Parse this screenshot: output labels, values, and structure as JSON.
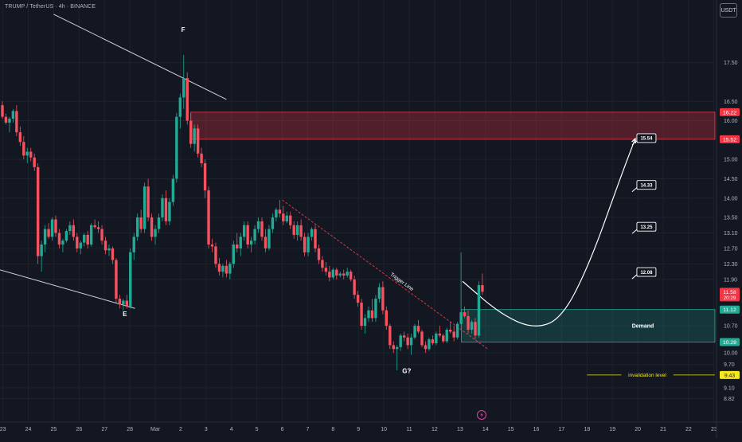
{
  "header": {
    "symbol_title": "TRUMP / TetherUS · 4h · BINANCE",
    "currency": "USDT"
  },
  "chart_data": {
    "type": "candlestick",
    "y_axis_ticks": [
      17.5,
      16.5,
      16.0,
      15.0,
      14.5,
      14.0,
      13.5,
      13.1,
      12.7,
      12.3,
      11.9,
      10.7,
      10.0,
      9.7,
      9.1,
      8.82
    ],
    "x_axis_ticks": [
      {
        "label": "23",
        "day": 23
      },
      {
        "label": "24",
        "day": 24
      },
      {
        "label": "25",
        "day": 25
      },
      {
        "label": "26",
        "day": 26
      },
      {
        "label": "27",
        "day": 27
      },
      {
        "label": "28",
        "day": 28
      },
      {
        "label": "Mar",
        "day": 29
      },
      {
        "label": "2",
        "day": 30
      },
      {
        "label": "3",
        "day": 31
      },
      {
        "label": "4",
        "day": 32
      },
      {
        "label": "5",
        "day": 33
      },
      {
        "label": "6",
        "day": 34
      },
      {
        "label": "7",
        "day": 35
      },
      {
        "label": "8",
        "day": 36
      },
      {
        "label": "9",
        "day": 37
      },
      {
        "label": "10",
        "day": 38
      },
      {
        "label": "11",
        "day": 39
      },
      {
        "label": "12",
        "day": 40
      },
      {
        "label": "13",
        "day": 41
      },
      {
        "label": "14",
        "day": 42
      },
      {
        "label": "15",
        "day": 43
      },
      {
        "label": "16",
        "day": 44
      },
      {
        "label": "17",
        "day": 45
      },
      {
        "label": "18",
        "day": 46
      },
      {
        "label": "19",
        "day": 47
      },
      {
        "label": "20",
        "day": 48
      },
      {
        "label": "21",
        "day": 49
      },
      {
        "label": "22",
        "day": 50
      },
      {
        "label": "23",
        "day": 51
      }
    ],
    "axis_badges": [
      {
        "price": 16.22,
        "label": "16.22",
        "color": "#f23645",
        "text_color": "#ffffff"
      },
      {
        "price": 15.52,
        "label": "15.52",
        "color": "#f23645",
        "text_color": "#ffffff"
      },
      {
        "price": 11.58,
        "label": "11.58",
        "sub": "20:29",
        "color": "#f23645",
        "text_color": "#ffffff"
      },
      {
        "price": 11.12,
        "label": "11.12",
        "color": "#22ab94",
        "text_color": "#ffffff"
      },
      {
        "price": 10.28,
        "label": "10.28",
        "color": "#22ab94",
        "text_color": "#ffffff"
      },
      {
        "price": 9.43,
        "label": "9.43",
        "color": "#f5e71c",
        "text_color": "#131722"
      }
    ],
    "zones": [
      {
        "name": "supply",
        "from_day": 30.4,
        "to_day": 53,
        "top": 16.22,
        "bottom": 15.52,
        "fill": "rgba(242,54,69,0.28)",
        "border": "#f23645"
      },
      {
        "name": "demand",
        "label": "Demand",
        "from_day": 41.05,
        "to_day": 53,
        "top": 11.12,
        "bottom": 10.28,
        "fill": "rgba(34,171,148,0.22)",
        "border": "#22ab94"
      }
    ],
    "invalidation": {
      "label": "invalidation level",
      "price": 9.43,
      "from_day": 46.0,
      "to_day": 53,
      "color": "#f5e71c"
    },
    "targets": [
      {
        "label": "15.54",
        "day": 47.9,
        "price": 15.54
      },
      {
        "label": "14.33",
        "day": 47.9,
        "price": 14.33
      },
      {
        "label": "13.25",
        "day": 47.9,
        "price": 13.25
      },
      {
        "label": "12.08",
        "day": 47.9,
        "price": 12.08
      }
    ],
    "trigger_line": {
      "label": "Trigger Line",
      "from": [
        34.0,
        13.95
      ],
      "to": [
        42.1,
        10.1
      ],
      "color": "#f23645"
    },
    "channel_lines": [
      {
        "from": [
          25.0,
          18.75
        ],
        "to": [
          31.8,
          16.55
        ]
      },
      {
        "from": [
          22.6,
          12.2
        ],
        "to": [
          28.2,
          11.15
        ]
      }
    ],
    "wave_labels": [
      {
        "label": "F",
        "day": 30.1,
        "price": 18.3
      },
      {
        "label": "E",
        "day": 27.8,
        "price": 10.95
      },
      {
        "label": "G?",
        "day": 38.9,
        "price": 9.48
      }
    ],
    "projection_path": [
      [
        41.1,
        11.85
      ],
      [
        42.6,
        11.0
      ],
      [
        43.9,
        10.62
      ],
      [
        45.0,
        10.88
      ],
      [
        46.1,
        12.3
      ],
      [
        47.3,
        14.5
      ],
      [
        47.9,
        15.54
      ]
    ],
    "marker_day": 41.85,
    "candles": [
      [
        22.98,
        16.4,
        16.5,
        16.05,
        16.1
      ],
      [
        23.12,
        16.1,
        16.18,
        15.9,
        15.95
      ],
      [
        23.26,
        15.95,
        16.1,
        15.7,
        16.05
      ],
      [
        23.4,
        16.05,
        16.3,
        15.95,
        16.25
      ],
      [
        23.54,
        16.25,
        16.4,
        15.6,
        15.7
      ],
      [
        23.68,
        15.7,
        15.85,
        15.35,
        15.45
      ],
      [
        23.82,
        15.45,
        15.6,
        15.0,
        15.1
      ],
      [
        23.96,
        15.1,
        15.3,
        14.9,
        15.2
      ],
      [
        24.1,
        15.2,
        15.3,
        14.95,
        15.05
      ],
      [
        24.24,
        15.05,
        15.15,
        14.7,
        14.8
      ],
      [
        24.38,
        14.8,
        14.9,
        12.3,
        12.5
      ],
      [
        24.52,
        12.5,
        12.9,
        12.1,
        12.8
      ],
      [
        24.66,
        12.8,
        13.3,
        12.6,
        13.2
      ],
      [
        24.8,
        13.2,
        13.35,
        12.95,
        13.0
      ],
      [
        24.94,
        13.0,
        13.5,
        12.9,
        13.45
      ],
      [
        25.08,
        13.45,
        13.55,
        13.0,
        13.1
      ],
      [
        25.22,
        13.1,
        13.2,
        12.7,
        12.8
      ],
      [
        25.36,
        12.8,
        12.95,
        12.6,
        12.9
      ],
      [
        25.5,
        12.9,
        13.2,
        12.85,
        13.15
      ],
      [
        25.64,
        13.15,
        13.4,
        13.05,
        13.3
      ],
      [
        25.78,
        13.3,
        13.45,
        12.9,
        13.0
      ],
      [
        25.92,
        13.0,
        13.1,
        12.6,
        12.7
      ],
      [
        26.06,
        12.7,
        12.9,
        12.55,
        12.85
      ],
      [
        26.2,
        12.85,
        13.1,
        12.75,
        13.05
      ],
      [
        26.34,
        13.05,
        13.15,
        12.7,
        12.8
      ],
      [
        26.48,
        12.8,
        13.35,
        12.75,
        13.3
      ],
      [
        26.62,
        13.3,
        13.45,
        13.2,
        13.25
      ],
      [
        26.76,
        13.25,
        13.4,
        13.1,
        13.2
      ],
      [
        26.9,
        13.2,
        13.3,
        12.8,
        12.9
      ],
      [
        27.04,
        12.9,
        13.0,
        12.55,
        12.65
      ],
      [
        27.18,
        12.65,
        12.8,
        12.5,
        12.7
      ],
      [
        27.32,
        12.7,
        12.75,
        12.3,
        12.4
      ],
      [
        27.46,
        12.4,
        12.45,
        11.3,
        11.4
      ],
      [
        27.6,
        11.4,
        11.5,
        11.15,
        11.25
      ],
      [
        27.74,
        11.25,
        11.4,
        11.1,
        11.35
      ],
      [
        27.88,
        11.35,
        11.5,
        11.15,
        11.2
      ],
      [
        28.02,
        11.2,
        12.7,
        11.15,
        12.6
      ],
      [
        28.16,
        12.6,
        13.1,
        12.4,
        13.0
      ],
      [
        28.3,
        13.0,
        13.6,
        12.9,
        13.5
      ],
      [
        28.44,
        13.5,
        13.7,
        13.1,
        13.2
      ],
      [
        28.58,
        13.2,
        14.4,
        13.1,
        14.3
      ],
      [
        28.72,
        14.3,
        14.5,
        13.4,
        13.5
      ],
      [
        28.86,
        13.5,
        13.6,
        12.9,
        13.0
      ],
      [
        29.0,
        13.0,
        13.3,
        12.8,
        13.2
      ],
      [
        29.14,
        13.2,
        13.6,
        13.1,
        13.5
      ],
      [
        29.28,
        13.5,
        14.1,
        13.4,
        14.0
      ],
      [
        29.42,
        14.0,
        14.2,
        13.3,
        13.4
      ],
      [
        29.56,
        13.4,
        14.0,
        13.3,
        13.9
      ],
      [
        29.7,
        13.9,
        14.6,
        13.8,
        14.5
      ],
      [
        29.84,
        14.5,
        16.2,
        14.4,
        16.1
      ],
      [
        29.98,
        16.1,
        16.7,
        15.8,
        16.6
      ],
      [
        30.12,
        16.6,
        17.7,
        16.3,
        17.1
      ],
      [
        30.26,
        17.1,
        17.25,
        15.9,
        16.0
      ],
      [
        30.4,
        16.0,
        16.2,
        15.3,
        15.4
      ],
      [
        30.54,
        15.4,
        15.9,
        15.2,
        15.8
      ],
      [
        30.68,
        15.8,
        15.9,
        15.05,
        15.15
      ],
      [
        30.82,
        15.15,
        15.3,
        14.8,
        14.9
      ],
      [
        30.96,
        14.9,
        15.0,
        14.0,
        14.2
      ],
      [
        31.1,
        14.2,
        14.3,
        12.7,
        12.8
      ],
      [
        31.24,
        12.8,
        12.95,
        12.6,
        12.75
      ],
      [
        31.38,
        12.75,
        12.85,
        12.2,
        12.3
      ],
      [
        31.52,
        12.3,
        12.45,
        12.0,
        12.1
      ],
      [
        31.66,
        12.1,
        12.3,
        11.95,
        12.25
      ],
      [
        31.8,
        12.25,
        12.4,
        11.95,
        12.05
      ],
      [
        31.94,
        12.05,
        12.35,
        11.9,
        12.3
      ],
      [
        32.08,
        12.3,
        12.9,
        12.2,
        12.8
      ],
      [
        32.22,
        12.8,
        13.1,
        12.6,
        12.7
      ],
      [
        32.36,
        12.7,
        13.1,
        12.5,
        13.0
      ],
      [
        32.5,
        13.0,
        13.4,
        12.9,
        13.3
      ],
      [
        32.64,
        13.3,
        13.4,
        12.7,
        12.8
      ],
      [
        32.78,
        12.8,
        13.0,
        12.6,
        12.9
      ],
      [
        32.92,
        12.9,
        13.3,
        12.8,
        13.2
      ],
      [
        33.06,
        13.2,
        13.5,
        13.1,
        13.4
      ],
      [
        33.2,
        13.4,
        13.5,
        12.9,
        13.0
      ],
      [
        33.34,
        13.0,
        13.2,
        12.6,
        12.7
      ],
      [
        33.48,
        12.7,
        13.3,
        12.65,
        13.2
      ],
      [
        33.62,
        13.2,
        13.6,
        13.1,
        13.5
      ],
      [
        33.76,
        13.5,
        13.75,
        13.4,
        13.7
      ],
      [
        33.9,
        13.7,
        13.95,
        13.5,
        13.6
      ],
      [
        34.04,
        13.6,
        13.8,
        13.3,
        13.4
      ],
      [
        34.18,
        13.4,
        13.65,
        13.35,
        13.55
      ],
      [
        34.32,
        13.55,
        13.65,
        13.2,
        13.3
      ],
      [
        34.46,
        13.3,
        13.4,
        12.95,
        13.05
      ],
      [
        34.6,
        13.05,
        13.4,
        12.9,
        13.3
      ],
      [
        34.74,
        13.3,
        13.45,
        12.9,
        13.0
      ],
      [
        34.88,
        13.0,
        13.1,
        12.5,
        12.6
      ],
      [
        35.02,
        12.6,
        13.1,
        12.5,
        13.0
      ],
      [
        35.16,
        13.0,
        13.25,
        12.9,
        13.2
      ],
      [
        35.3,
        13.2,
        13.3,
        12.6,
        12.7
      ],
      [
        35.44,
        12.7,
        12.8,
        12.3,
        12.4
      ],
      [
        35.58,
        12.4,
        12.5,
        12.1,
        12.2
      ],
      [
        35.72,
        12.2,
        12.35,
        12.0,
        12.1
      ],
      [
        35.86,
        12.1,
        12.25,
        11.85,
        11.95
      ],
      [
        36.0,
        11.95,
        12.2,
        11.9,
        12.15
      ],
      [
        36.14,
        12.15,
        12.2,
        11.9,
        12.0
      ],
      [
        36.28,
        12.0,
        12.1,
        11.95,
        12.05
      ],
      [
        36.42,
        12.05,
        12.15,
        11.9,
        12.0
      ],
      [
        36.56,
        12.0,
        12.2,
        11.95,
        12.1
      ],
      [
        36.7,
        12.1,
        12.15,
        11.85,
        11.9
      ],
      [
        36.84,
        11.9,
        12.0,
        11.4,
        11.5
      ],
      [
        36.98,
        11.5,
        11.6,
        11.2,
        11.3
      ],
      [
        37.12,
        11.3,
        11.4,
        10.6,
        10.7
      ],
      [
        37.26,
        10.7,
        11.0,
        10.5,
        10.9
      ],
      [
        37.4,
        10.9,
        11.2,
        10.8,
        11.1
      ],
      [
        37.54,
        11.1,
        11.4,
        10.8,
        10.9
      ],
      [
        37.68,
        10.9,
        11.5,
        10.8,
        11.4
      ],
      [
        37.82,
        11.4,
        11.8,
        11.3,
        11.7
      ],
      [
        37.96,
        11.7,
        11.85,
        11.0,
        11.1
      ],
      [
        38.1,
        11.1,
        11.2,
        10.6,
        10.7
      ],
      [
        38.24,
        10.7,
        10.75,
        10.1,
        10.2
      ],
      [
        38.38,
        10.2,
        10.3,
        10.0,
        10.1
      ],
      [
        38.52,
        10.1,
        10.2,
        9.55,
        10.15
      ],
      [
        38.66,
        10.15,
        10.5,
        10.05,
        10.45
      ],
      [
        38.8,
        10.45,
        10.55,
        10.3,
        10.4
      ],
      [
        38.94,
        10.4,
        10.5,
        10.1,
        10.2
      ],
      [
        39.08,
        10.2,
        10.5,
        9.95,
        10.4
      ],
      [
        39.22,
        10.4,
        10.75,
        10.35,
        10.7
      ],
      [
        39.36,
        10.7,
        10.85,
        10.5,
        10.55
      ],
      [
        39.5,
        10.55,
        10.6,
        10.15,
        10.2
      ],
      [
        39.64,
        10.2,
        10.3,
        10.0,
        10.1
      ],
      [
        39.78,
        10.1,
        10.4,
        10.05,
        10.35
      ],
      [
        39.92,
        10.35,
        10.45,
        10.2,
        10.25
      ],
      [
        40.06,
        10.25,
        10.55,
        10.2,
        10.5
      ],
      [
        40.2,
        10.5,
        10.7,
        10.4,
        10.45
      ],
      [
        40.34,
        10.45,
        10.5,
        10.25,
        10.3
      ],
      [
        40.48,
        10.3,
        10.65,
        10.25,
        10.6
      ],
      [
        40.62,
        10.6,
        10.8,
        10.5,
        10.55
      ],
      [
        40.76,
        10.55,
        10.7,
        10.3,
        10.4
      ],
      [
        40.9,
        10.4,
        10.8,
        10.35,
        10.75
      ],
      [
        41.04,
        10.75,
        12.6,
        10.65,
        11.05
      ],
      [
        41.18,
        11.05,
        11.2,
        10.9,
        10.95
      ],
      [
        41.32,
        10.95,
        11.1,
        10.5,
        10.6
      ],
      [
        41.46,
        10.6,
        10.85,
        10.5,
        10.8
      ],
      [
        41.6,
        10.8,
        10.9,
        10.35,
        10.45
      ],
      [
        41.74,
        10.45,
        11.85,
        10.4,
        11.75
      ],
      [
        41.88,
        11.75,
        12.05,
        11.5,
        11.58
      ]
    ]
  }
}
